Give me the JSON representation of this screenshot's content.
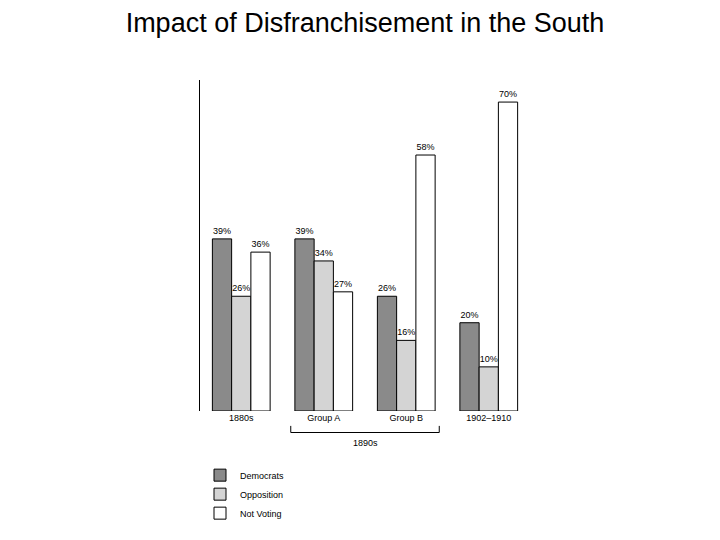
{
  "chart_data": {
    "type": "bar",
    "title": "Impact of Disfranchisement in the South",
    "categories": [
      "1880s",
      "Group A",
      "Group B",
      "1902–1910"
    ],
    "series": [
      {
        "name": "Democrats",
        "color": "#8a8a8a",
        "values": [
          39,
          39,
          26,
          20
        ],
        "value_labels": [
          "39%",
          "39%",
          "26%",
          "20%"
        ]
      },
      {
        "name": "Opposition",
        "color": "#d4d4d4",
        "values": [
          26,
          34,
          16,
          10
        ],
        "value_labels": [
          "26%",
          "34%",
          "16%",
          "10%"
        ]
      },
      {
        "name": "Not Voting",
        "color": "#ffffff",
        "values": [
          36,
          27,
          58,
          70
        ],
        "value_labels": [
          "36%",
          "27%",
          "58%",
          "70%"
        ]
      }
    ],
    "annotations": [
      {
        "text": "1890s",
        "span": [
          "Group A",
          "Group B"
        ]
      }
    ],
    "ylim": [
      0,
      75
    ],
    "data_labels": true,
    "tick_labels": "x",
    "grid": false,
    "legend": "bottom left"
  }
}
